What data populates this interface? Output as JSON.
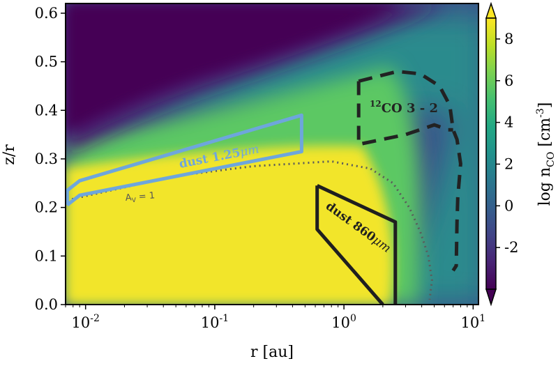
{
  "chart_data": {
    "type": "heatmap",
    "xlabel": "r [au]",
    "ylabel": "z/r",
    "xscale": "log",
    "xlim": [
      0.007,
      11
    ],
    "ylim": [
      0.0,
      0.62
    ],
    "x_ticks": [
      {
        "value": 0.01,
        "base": "10",
        "exp": "-2"
      },
      {
        "value": 0.1,
        "base": "10",
        "exp": "-1"
      },
      {
        "value": 1,
        "base": "10",
        "exp": "0"
      },
      {
        "value": 10,
        "base": "10",
        "exp": "1"
      }
    ],
    "y_ticks": [
      "0.0",
      "0.1",
      "0.2",
      "0.3",
      "0.4",
      "0.5",
      "0.6"
    ],
    "colorbar": {
      "label": "log n",
      "label_sub": "CO",
      "label_unit": "[cm",
      "label_sup": "-3",
      "label_end": "]",
      "range": [
        -4,
        9
      ],
      "extend": "both",
      "ticks": [
        "-2",
        "0",
        "2",
        "4",
        "6",
        "8"
      ],
      "colormap": "viridis"
    },
    "annotations": {
      "dust_125": {
        "text": "dust 1.25",
        "unit": "μm",
        "color": "#6ea6dc"
      },
      "dust_860": {
        "text": "dust 860",
        "unit": "μm",
        "color": "#1f1f1f"
      },
      "co_32": {
        "sup": "12",
        "text": "CO 3 - 2",
        "color": "#222222"
      },
      "av": {
        "text": "A",
        "sub": "V",
        "rest": " = 1",
        "color": "#555555"
      }
    },
    "contours": {
      "dust_125": [
        [
          0.0072,
          0.205
        ],
        [
          0.0072,
          0.235
        ],
        [
          0.009,
          0.255
        ],
        [
          0.47,
          0.39
        ],
        [
          0.47,
          0.315
        ],
        [
          0.009,
          0.225
        ],
        [
          0.0072,
          0.205
        ]
      ],
      "dust_860": [
        [
          0.62,
          0.245
        ],
        [
          2.5,
          0.17
        ],
        [
          2.5,
          0.0
        ]
      ],
      "dust_860_b": [
        [
          2.0,
          0.0
        ],
        [
          0.62,
          0.155
        ],
        [
          0.62,
          0.245
        ]
      ],
      "co_32": [
        [
          1.3,
          0.46
        ],
        [
          2.6,
          0.48
        ],
        [
          3.9,
          0.475
        ],
        [
          5.5,
          0.45
        ],
        [
          6.6,
          0.41
        ],
        [
          7.0,
          0.36
        ],
        [
          7.5,
          0.34
        ],
        [
          8.0,
          0.29
        ],
        [
          7.6,
          0.22
        ],
        [
          7.5,
          0.17
        ],
        [
          7.4,
          0.08
        ],
        [
          7.0,
          0.07
        ]
      ],
      "co_32_inner": [
        [
          1.3,
          0.46
        ],
        [
          1.3,
          0.33
        ],
        [
          3.0,
          0.35
        ],
        [
          5.0,
          0.37
        ],
        [
          6.4,
          0.36
        ],
        [
          7.0,
          0.36
        ]
      ],
      "av1": [
        [
          0.0072,
          0.215
        ],
        [
          0.05,
          0.265
        ],
        [
          0.2,
          0.285
        ],
        [
          0.8,
          0.295
        ],
        [
          1.6,
          0.28
        ],
        [
          2.4,
          0.25
        ],
        [
          3.2,
          0.2
        ],
        [
          3.9,
          0.15
        ],
        [
          4.5,
          0.1
        ],
        [
          4.8,
          0.05
        ],
        [
          4.6,
          0.01
        ]
      ]
    }
  }
}
